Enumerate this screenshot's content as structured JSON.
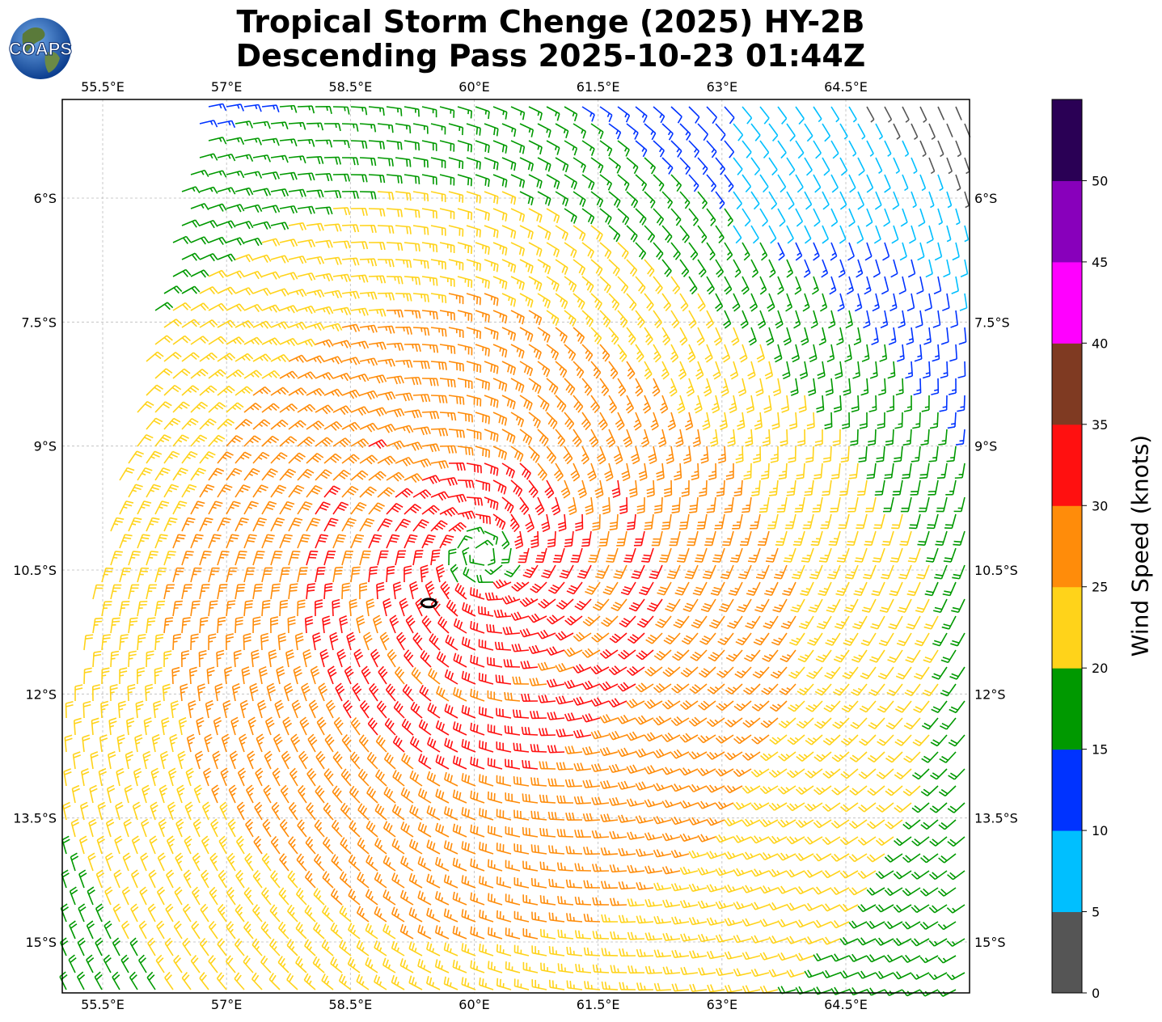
{
  "header": {
    "title_line1": "Tropical Storm Chenge (2025) HY-2B",
    "title_line2": "Descending Pass 2025-10-23 01:44Z",
    "logo_text": "COAPS"
  },
  "map": {
    "lon_ticks": [
      "55.5°E",
      "57°E",
      "58.5°E",
      "60°E",
      "61.5°E",
      "63°E",
      "64.5°E"
    ],
    "lon_values": [
      55.5,
      57,
      58.5,
      60,
      61.5,
      63,
      64.5
    ],
    "lat_ticks": [
      "6°S",
      "7.5°S",
      "9°S",
      "10.5°S",
      "12°S",
      "13.5°S",
      "15°S"
    ],
    "lat_values": [
      -6,
      -7.5,
      -9,
      -10.5,
      -12,
      -13.5,
      -15
    ],
    "lon_range": [
      55.0,
      66.0
    ],
    "lat_range": [
      -4.8,
      -15.6
    ],
    "storm_center": {
      "lon": 60.1,
      "lat": -10.3
    },
    "storm_track_marker": {
      "lon": 59.45,
      "lat": -10.9
    }
  },
  "colorbar": {
    "title": "Wind Speed (knots)",
    "tick_labels": [
      "0",
      "5",
      "10",
      "15",
      "20",
      "25",
      "30",
      "35",
      "40",
      "45",
      "50"
    ],
    "bins": [
      {
        "min": 0,
        "max": 5,
        "color": "#555555"
      },
      {
        "min": 5,
        "max": 10,
        "color": "#00bfff"
      },
      {
        "min": 10,
        "max": 15,
        "color": "#0033ff"
      },
      {
        "min": 15,
        "max": 20,
        "color": "#009900"
      },
      {
        "min": 20,
        "max": 25,
        "color": "#ffd31a"
      },
      {
        "min": 25,
        "max": 30,
        "color": "#ff8c0a"
      },
      {
        "min": 30,
        "max": 35,
        "color": "#ff1010"
      },
      {
        "min": 35,
        "max": 40,
        "color": "#7f3a22"
      },
      {
        "min": 40,
        "max": 45,
        "color": "#ff00ff"
      },
      {
        "min": 45,
        "max": 50,
        "color": "#8800bb"
      },
      {
        "min": 50,
        "max": 55,
        "color": "#2a0055"
      }
    ]
  }
}
